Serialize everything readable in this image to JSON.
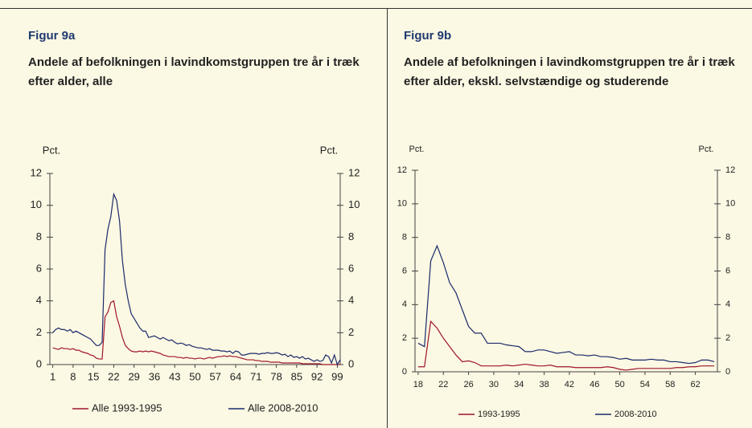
{
  "chart_data": [
    {
      "type": "line",
      "title": "Figur 9a",
      "subtitle": "Andele af befolkningen i lavindkomstgruppen tre år i træk efter alder, alle",
      "ylabel": "Pct.",
      "y2label": "Pct.",
      "x": [
        1,
        2,
        3,
        4,
        5,
        6,
        7,
        8,
        9,
        10,
        11,
        12,
        13,
        14,
        15,
        16,
        17,
        18,
        19,
        20,
        21,
        22,
        23,
        24,
        25,
        26,
        27,
        28,
        29,
        30,
        31,
        32,
        33,
        34,
        35,
        36,
        37,
        38,
        39,
        40,
        41,
        42,
        43,
        44,
        45,
        46,
        47,
        48,
        49,
        50,
        51,
        52,
        53,
        54,
        55,
        56,
        57,
        58,
        59,
        60,
        61,
        62,
        63,
        64,
        65,
        66,
        67,
        68,
        69,
        70,
        71,
        72,
        73,
        74,
        75,
        76,
        77,
        78,
        79,
        80,
        81,
        82,
        83,
        84,
        85,
        86,
        87,
        88,
        89,
        90,
        91,
        92,
        93,
        94,
        95,
        96,
        97,
        98,
        99,
        100
      ],
      "series": [
        {
          "name": "Alle 1993-1995",
          "color": "#a0152a",
          "values": [
            1.05,
            1.0,
            0.95,
            1.05,
            1.0,
            1.0,
            0.95,
            1.0,
            0.9,
            0.9,
            0.8,
            0.75,
            0.7,
            0.6,
            0.55,
            0.4,
            0.35,
            0.35,
            3.0,
            3.3,
            3.9,
            4.0,
            3.0,
            2.4,
            1.7,
            1.2,
            1.0,
            0.85,
            0.8,
            0.8,
            0.85,
            0.8,
            0.85,
            0.8,
            0.85,
            0.8,
            0.75,
            0.7,
            0.6,
            0.55,
            0.5,
            0.5,
            0.5,
            0.45,
            0.45,
            0.4,
            0.45,
            0.4,
            0.4,
            0.35,
            0.4,
            0.4,
            0.35,
            0.4,
            0.45,
            0.4,
            0.45,
            0.5,
            0.5,
            0.55,
            0.5,
            0.55,
            0.5,
            0.5,
            0.45,
            0.4,
            0.35,
            0.3,
            0.3,
            0.3,
            0.25,
            0.25,
            0.2,
            0.2,
            0.2,
            0.15,
            0.15,
            0.15,
            0.15,
            0.1,
            0.1,
            0.1,
            0.1,
            0.1,
            0.1,
            0.1,
            0.05,
            0.05,
            0.05,
            0.05,
            0.05,
            0.05,
            0.05,
            0,
            0,
            0,
            0,
            0,
            0,
            0
          ]
        },
        {
          "name": "Alle 2008-2010",
          "color": "#1b2a6b",
          "values": [
            2.0,
            2.2,
            2.3,
            2.2,
            2.2,
            2.1,
            2.2,
            2.0,
            2.1,
            2.0,
            1.9,
            1.8,
            1.7,
            1.6,
            1.4,
            1.2,
            1.2,
            1.4,
            7.2,
            8.5,
            9.3,
            10.7,
            10.3,
            9.0,
            6.5,
            5.0,
            4.0,
            3.2,
            2.9,
            2.6,
            2.3,
            2.1,
            2.1,
            1.7,
            1.75,
            1.8,
            1.7,
            1.6,
            1.7,
            1.6,
            1.5,
            1.55,
            1.4,
            1.3,
            1.35,
            1.3,
            1.2,
            1.25,
            1.15,
            1.1,
            1.05,
            1.05,
            1.0,
            0.95,
            1.0,
            0.9,
            0.9,
            0.9,
            0.85,
            0.85,
            0.8,
            0.85,
            0.7,
            0.85,
            0.8,
            0.6,
            0.6,
            0.65,
            0.7,
            0.7,
            0.7,
            0.65,
            0.7,
            0.7,
            0.75,
            0.7,
            0.7,
            0.75,
            0.7,
            0.6,
            0.65,
            0.5,
            0.6,
            0.45,
            0.5,
            0.4,
            0.5,
            0.35,
            0.4,
            0.3,
            0.2,
            0.3,
            0.2,
            0.25,
            0.6,
            0.5,
            0.1,
            0.6,
            0,
            0.3
          ]
        }
      ],
      "xlim": [
        0,
        100
      ],
      "xticks": [
        1,
        8,
        15,
        22,
        29,
        36,
        43,
        50,
        57,
        64,
        71,
        78,
        85,
        92,
        99
      ],
      "ylim": [
        0,
        12
      ],
      "yticks": [
        0,
        2,
        4,
        6,
        8,
        10,
        12
      ],
      "y2lim": [
        0,
        12
      ],
      "y2ticks": [
        0,
        2,
        4,
        6,
        8,
        10,
        12
      ],
      "legend": "bottom"
    },
    {
      "type": "line",
      "title": "Figur 9b",
      "subtitle": "Andele af befolkningen i lavindkomstgruppen tre år i træk efter alder, ekskl. selvstændige og studerende",
      "ylabel": "Pct.",
      "y2label": "Pct.",
      "x": [
        18,
        19,
        20,
        21,
        22,
        23,
        24,
        25,
        26,
        27,
        28,
        29,
        30,
        31,
        32,
        33,
        34,
        35,
        36,
        37,
        38,
        39,
        40,
        41,
        42,
        43,
        44,
        45,
        46,
        47,
        48,
        49,
        50,
        51,
        52,
        53,
        54,
        55,
        56,
        57,
        58,
        59,
        60,
        61,
        62,
        63,
        64,
        65
      ],
      "series": [
        {
          "name": "1993-1995",
          "color": "#a0152a",
          "values": [
            0.3,
            0.3,
            3.0,
            2.6,
            2.0,
            1.5,
            1.0,
            0.6,
            0.65,
            0.55,
            0.35,
            0.35,
            0.35,
            0.35,
            0.4,
            0.35,
            0.4,
            0.45,
            0.4,
            0.35,
            0.35,
            0.4,
            0.3,
            0.3,
            0.3,
            0.25,
            0.25,
            0.25,
            0.25,
            0.25,
            0.3,
            0.25,
            0.15,
            0.1,
            0.15,
            0.2,
            0.2,
            0.2,
            0.2,
            0.2,
            0.2,
            0.25,
            0.25,
            0.3,
            0.3,
            0.35,
            0.35,
            0.35
          ]
        },
        {
          "name": "2008-2010",
          "color": "#1b2a6b",
          "values": [
            1.7,
            1.5,
            6.6,
            7.5,
            6.5,
            5.3,
            4.7,
            3.7,
            2.7,
            2.3,
            2.3,
            1.7,
            1.7,
            1.7,
            1.6,
            1.55,
            1.5,
            1.2,
            1.2,
            1.3,
            1.3,
            1.2,
            1.1,
            1.15,
            1.2,
            1.0,
            1.0,
            0.95,
            1.0,
            0.9,
            0.9,
            0.85,
            0.75,
            0.8,
            0.7,
            0.7,
            0.7,
            0.75,
            0.7,
            0.7,
            0.6,
            0.6,
            0.55,
            0.5,
            0.55,
            0.7,
            0.7,
            0.6
          ]
        }
      ],
      "xlim": [
        17.5,
        65.5
      ],
      "xticks": [
        18,
        22,
        26,
        30,
        34,
        38,
        42,
        46,
        50,
        54,
        58,
        62
      ],
      "ylim": [
        0,
        12
      ],
      "yticks": [
        0,
        2,
        4,
        6,
        8,
        10,
        12
      ],
      "y2lim": [
        0,
        12
      ],
      "y2ticks": [
        0,
        2,
        4,
        6,
        8,
        10,
        12
      ],
      "legend": "bottom"
    }
  ]
}
